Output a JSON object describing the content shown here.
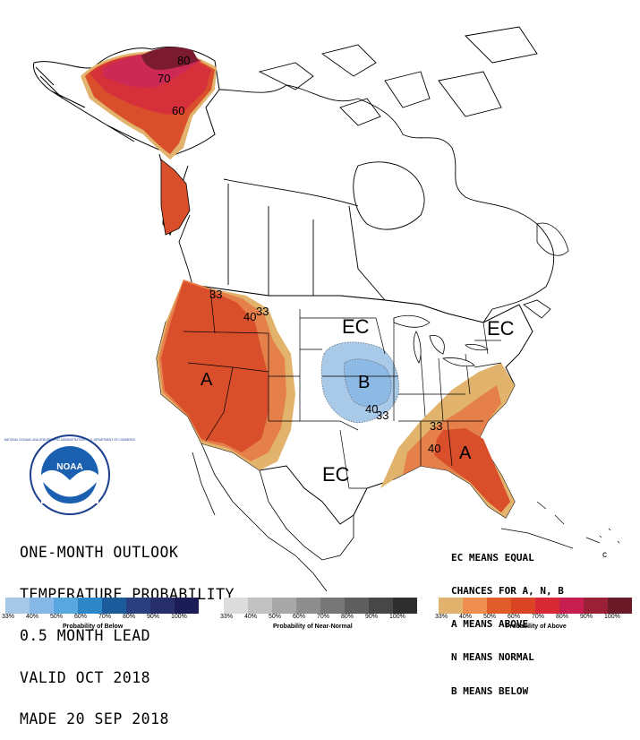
{
  "title_lines": [
    "ONE-MONTH OUTLOOK",
    "TEMPERATURE PROBABILITY",
    "0.5 MONTH LEAD",
    "VALID OCT 2018",
    "MADE 20 SEP 2018"
  ],
  "notes_lines": [
    "EC MEANS EQUAL",
    "CHANCES FOR A, N, B",
    "A MEANS ABOVE",
    "N MEANS NORMAL",
    "B MEANS BELOW"
  ],
  "map_labels": {
    "ec_north": "EC",
    "ec_south": "EC",
    "ec_east": "EC",
    "a_west": "A",
    "a_southeast": "A",
    "b_central": "B",
    "c_small": "c"
  },
  "contour_labels": {
    "alaska_80": "80",
    "alaska_70": "70",
    "alaska_60": "60",
    "west_40": "40",
    "west_33a": "33",
    "west_33b": "33",
    "central_40": "40",
    "central_33": "33",
    "se_33": "33",
    "se_40": "40"
  },
  "logo_text": {
    "center": "NOAA",
    "ring": "NATIONAL OCEANIC AND ATMOSPHERIC ADMINISTRATION · U.S. DEPARTMENT OF COMMERCE"
  },
  "scales": {
    "below": {
      "title": "Probability of Below",
      "ticks": [
        "33%",
        "40%",
        "50%",
        "60%",
        "70%",
        "80%",
        "90%",
        "100%"
      ],
      "colors": [
        "#a6c8e8",
        "#85b8e6",
        "#59a7e0",
        "#2d86c8",
        "#1b5b9c",
        "#2a3f80",
        "#272e6a",
        "#1c1c56"
      ]
    },
    "normal": {
      "title": "Probability of Near-Normal",
      "ticks": [
        "33%",
        "40%",
        "50%",
        "60%",
        "70%",
        "80%",
        "90%",
        "100%"
      ],
      "colors": [
        "#dcdcdc",
        "#c2c2c2",
        "#a8a8a8",
        "#8e8e8e",
        "#777777",
        "#5f5f5f",
        "#474747",
        "#2e2e2e"
      ]
    },
    "above": {
      "title": "Probability of Above",
      "ticks": [
        "33%",
        "40%",
        "50%",
        "60%",
        "70%",
        "80%",
        "90%",
        "100%"
      ],
      "colors": [
        "#e2b36c",
        "#ef8f4f",
        "#e05d2b",
        "#d84424",
        "#d62a36",
        "#c51f4f",
        "#9a2038",
        "#6a1b27"
      ]
    }
  },
  "category_colors": {
    "above_33": "#e2b36c",
    "above_40": "#e5804a",
    "above_50": "#d94e2b",
    "above_60": "#d64e35",
    "above_70": "#cc2a45",
    "above_80": "#8c1a33",
    "below_33": "#a9c9e8",
    "below_40": "#8db9e5"
  }
}
